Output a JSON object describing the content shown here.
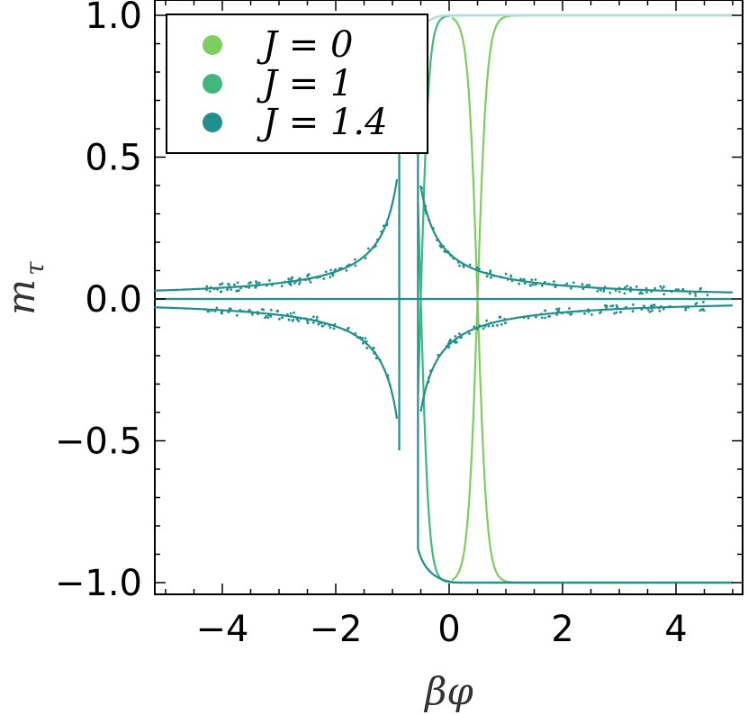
{
  "chart_data": {
    "type": "line",
    "xlabel_symbol": "βφ",
    "ylabel_main": "m",
    "ylabel_sub": "τ",
    "xlim": [
      -5.2,
      5.0
    ],
    "ylim": [
      -1.05,
      1.0
    ],
    "xticks": [
      -4,
      -2,
      0,
      2,
      4
    ],
    "xtick_labels": [
      "−4",
      "−2",
      "0",
      "2",
      "4"
    ],
    "yticks": [
      1.0,
      0.5,
      0.0,
      -0.5,
      -1.0
    ],
    "ytick_labels": [
      "1.0",
      "0.5",
      "0.0",
      "−0.5",
      "−1.0"
    ],
    "grid": false,
    "legend_position": "top-left",
    "series": [
      {
        "name": "J = 0",
        "color": "#7ccf5e",
        "J": 0
      },
      {
        "name": "J = 1",
        "color": "#42b77c",
        "J": 1
      },
      {
        "name": "J = 1.4",
        "color": "#21908c",
        "J": 1.4
      }
    ],
    "curves": {
      "J0_crossing_x": 0.5,
      "J1_crossing_x": -0.5,
      "J14_vertical_x": -0.5,
      "J14_loop_left_x": -0.9,
      "J14_peak_y": 0.53,
      "J14_step_x": -0.55,
      "J14_branch_lower_y": -0.9
    }
  }
}
